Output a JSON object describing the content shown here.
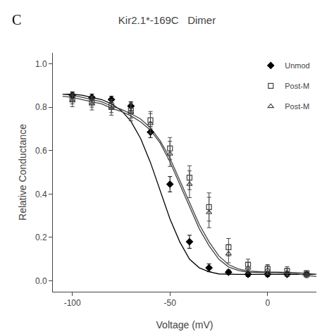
{
  "chart_data": {
    "type": "scatter",
    "title": "Kir2.1*-169C   Dimer",
    "xlabel": "Voltage (mV)",
    "ylabel": "Relative Conductance",
    "annotations": [
      "C"
    ],
    "xlim": [
      -110,
      25
    ],
    "ylim": [
      -0.05,
      1.05
    ],
    "xticks": [
      -100,
      -50,
      0
    ],
    "yticks": [
      {
        "value": 0,
        "label": "0.0"
      },
      0.2,
      0.4,
      0.6,
      0.8,
      {
        "value": 1,
        "label": "1.0"
      }
    ],
    "grid": false,
    "legend": "upper right",
    "series": [
      {
        "name": "Unmod",
        "marker": "diamond",
        "color": "#000000",
        "x": [
          -100,
          -90,
          -80,
          -70,
          -60,
          -50,
          -40,
          -30,
          -20,
          -10,
          0,
          10,
          20
        ],
        "values": [
          0.855,
          0.845,
          0.835,
          0.805,
          0.685,
          0.445,
          0.18,
          0.06,
          0.04,
          0.03,
          0.03,
          0.03,
          0.03
        ],
        "yerr": [
          0.015,
          0.015,
          0.015,
          0.02,
          0.025,
          0.035,
          0.03,
          0.018,
          0.01,
          0.01,
          0.01,
          0.01,
          0.01
        ],
        "fit_x": [
          -105,
          -100,
          -95,
          -90,
          -85,
          -80,
          -75,
          -70,
          -65,
          -60,
          -55,
          -50,
          -45,
          -40,
          -35,
          -30,
          -25,
          -20,
          -15,
          -10,
          -5,
          0,
          5,
          10,
          15,
          20,
          25
        ],
        "fit_y": [
          0.86,
          0.86,
          0.855,
          0.845,
          0.835,
          0.815,
          0.785,
          0.735,
          0.655,
          0.545,
          0.415,
          0.285,
          0.18,
          0.1,
          0.06,
          0.042,
          0.032,
          0.03,
          0.03,
          0.03,
          0.03,
          0.03,
          0.03,
          0.03,
          0.03,
          0.03,
          0.03
        ]
      },
      {
        "name": "Post-M",
        "marker": "square-open",
        "color": "#444444",
        "x": [
          -100,
          -90,
          -80,
          -70,
          -60,
          -50,
          -40,
          -30,
          -20,
          -10,
          0,
          10,
          20
        ],
        "values": [
          0.84,
          0.825,
          0.805,
          0.785,
          0.74,
          0.61,
          0.475,
          0.34,
          0.155,
          0.075,
          0.055,
          0.045,
          0.035
        ],
        "yerr": [
          0.025,
          0.025,
          0.03,
          0.035,
          0.04,
          0.05,
          0.055,
          0.065,
          0.04,
          0.025,
          0.02,
          0.02,
          0.012
        ],
        "fit_x": [
          -105,
          -100,
          -95,
          -90,
          -85,
          -80,
          -75,
          -70,
          -65,
          -60,
          -55,
          -50,
          -45,
          -40,
          -35,
          -30,
          -25,
          -20,
          -15,
          -10,
          -5,
          0,
          5,
          10,
          15,
          20,
          25
        ],
        "fit_y": [
          0.86,
          0.855,
          0.845,
          0.835,
          0.825,
          0.805,
          0.79,
          0.77,
          0.745,
          0.705,
          0.645,
          0.565,
          0.465,
          0.36,
          0.26,
          0.18,
          0.115,
          0.075,
          0.055,
          0.045,
          0.042,
          0.04,
          0.04,
          0.04,
          0.038,
          0.035,
          0.03
        ]
      },
      {
        "name": "Post-M",
        "marker": "triangle-up-open",
        "color": "#444444",
        "x": [
          -100,
          -90,
          -80,
          -70,
          -60,
          -50,
          -40,
          -30,
          -20,
          -10,
          0,
          10,
          20
        ],
        "values": [
          0.83,
          0.815,
          0.795,
          0.775,
          0.725,
          0.585,
          0.445,
          0.315,
          0.125,
          0.06,
          0.05,
          0.04,
          0.025
        ],
        "yerr": [
          0.028,
          0.028,
          0.032,
          0.038,
          0.045,
          0.058,
          0.062,
          0.07,
          0.042,
          0.025,
          0.02,
          0.018,
          0.01
        ],
        "fit_x": [
          -105,
          -100,
          -95,
          -90,
          -85,
          -80,
          -75,
          -70,
          -65,
          -60,
          -55,
          -50,
          -45,
          -40,
          -35,
          -30,
          -25,
          -20,
          -15,
          -10,
          -5,
          0,
          5,
          10,
          15,
          20,
          25
        ],
        "fit_y": [
          0.85,
          0.845,
          0.835,
          0.825,
          0.815,
          0.795,
          0.78,
          0.76,
          0.732,
          0.694,
          0.634,
          0.548,
          0.445,
          0.338,
          0.24,
          0.162,
          0.1,
          0.064,
          0.048,
          0.04,
          0.038,
          0.037,
          0.037,
          0.036,
          0.033,
          0.025,
          0.02
        ]
      }
    ]
  }
}
